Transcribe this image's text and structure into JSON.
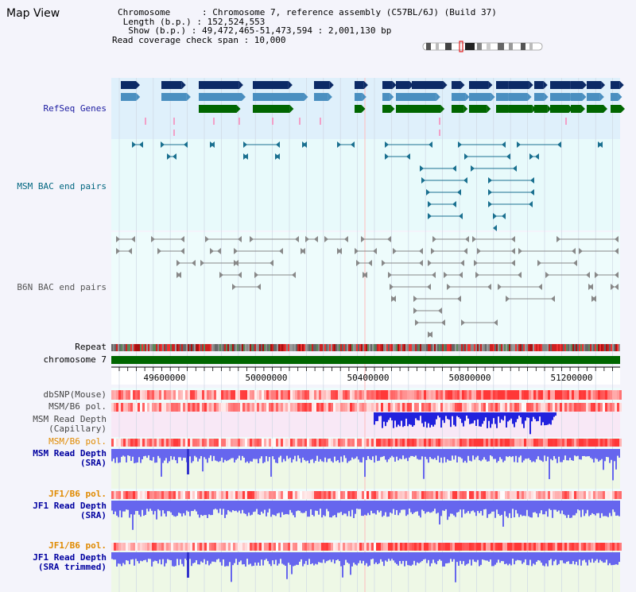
{
  "panel_title": "Map View",
  "info": {
    "chromosome": "Chromosome      : Chromosome 7, reference assembly (C57BL/6J) (Build 37)",
    "length": " Length (b.p.) : 152,524,553",
    "show": "  Show (b.p.) : 49,472,465-51,473,594 : 2,001,130 bp",
    "coverage": "Read coverage check span : 10,000"
  },
  "tracks": {
    "refseq": "RefSeq Genes",
    "msm_bac": "MSM BAC end pairs",
    "b6n_bac": "B6N BAC end pairs",
    "repeat": "Repeat",
    "chrom": "chromosome 7",
    "dbsnp": "dbSNP(Mouse)",
    "msm_b6_pol_1": "MSM/B6 pol.",
    "msm_cap": "MSM Read Depth\n(Capillary)",
    "msm_b6_pol_2": "MSM/B6 pol.",
    "msm_sra": "MSM Read Depth\n(SRA)",
    "jf1_pol_1": "JF1/B6 pol.",
    "jf1_sra": "JF1 Read Depth\n(SRA)",
    "jf1_pol_2": "JF1/B6 pol.",
    "jf1_trim": "JF1 Read Depth\n(SRA trimmed)"
  },
  "axis_ticks": [
    "49600000",
    "50000000",
    "50400000",
    "50800000",
    "51200000"
  ],
  "colors": {
    "refseq_label": "#1a1aa0",
    "msm_bac_label": "#006680",
    "b6n_label": "#555555",
    "pol_label": "#e08a00",
    "depth_label": "#0000a0",
    "gene_dark": "#0c2a66",
    "gene_mid": "#4a8fc0",
    "gene_green": "#006600",
    "bac_teal": "#1a7090",
    "chrom_green": "#006600",
    "depth_blue": "#6666ee"
  }
}
